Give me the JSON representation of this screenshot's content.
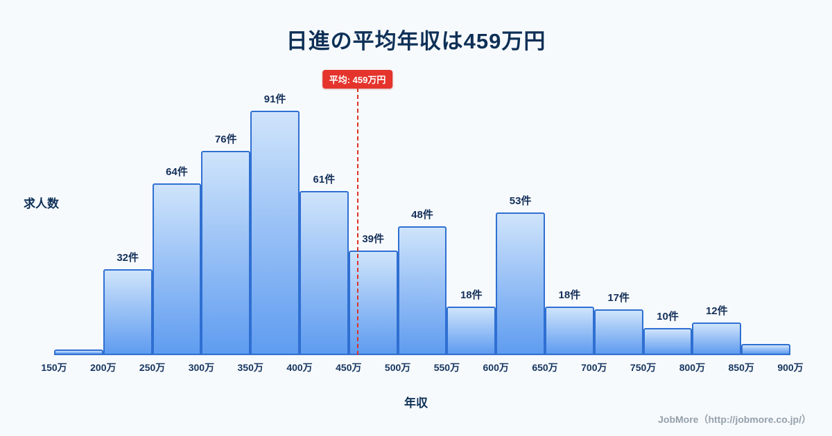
{
  "title": "日進の平均年収は459万円",
  "chart_data": {
    "type": "bar",
    "title": "日進の平均年収は459万円",
    "xlabel": "年収",
    "ylabel": "求人数",
    "x_tick_labels": [
      "150万",
      "200万",
      "250万",
      "300万",
      "350万",
      "400万",
      "450万",
      "500万",
      "550万",
      "600万",
      "650万",
      "700万",
      "750万",
      "800万",
      "850万",
      "900万"
    ],
    "bin_edges_man_yen": [
      150,
      200,
      250,
      300,
      350,
      400,
      450,
      500,
      550,
      600,
      650,
      700,
      750,
      800,
      850,
      900
    ],
    "values": [
      2,
      32,
      64,
      76,
      91,
      61,
      39,
      48,
      18,
      53,
      18,
      17,
      10,
      12,
      4
    ],
    "bar_labels": [
      "",
      "32件",
      "64件",
      "76件",
      "91件",
      "61件",
      "39件",
      "48件",
      "18件",
      "53件",
      "18件",
      "17件",
      "10件",
      "12件",
      ""
    ],
    "ylim": [
      0,
      100
    ],
    "grid": false,
    "legend": "none",
    "average": {
      "value": 459,
      "label": "平均: 459万円",
      "line_color": "#dd3128",
      "badge_color": "#e4342c"
    },
    "bar_fill_top": "#cfe4fb",
    "bar_fill_bottom": "#5f9cf0",
    "bar_border": "#2f6fd2",
    "background": "#f7fafd",
    "title_color": "#0e3057"
  },
  "footer": {
    "credit": "JobMore（http://jobmore.co.jp/）"
  }
}
